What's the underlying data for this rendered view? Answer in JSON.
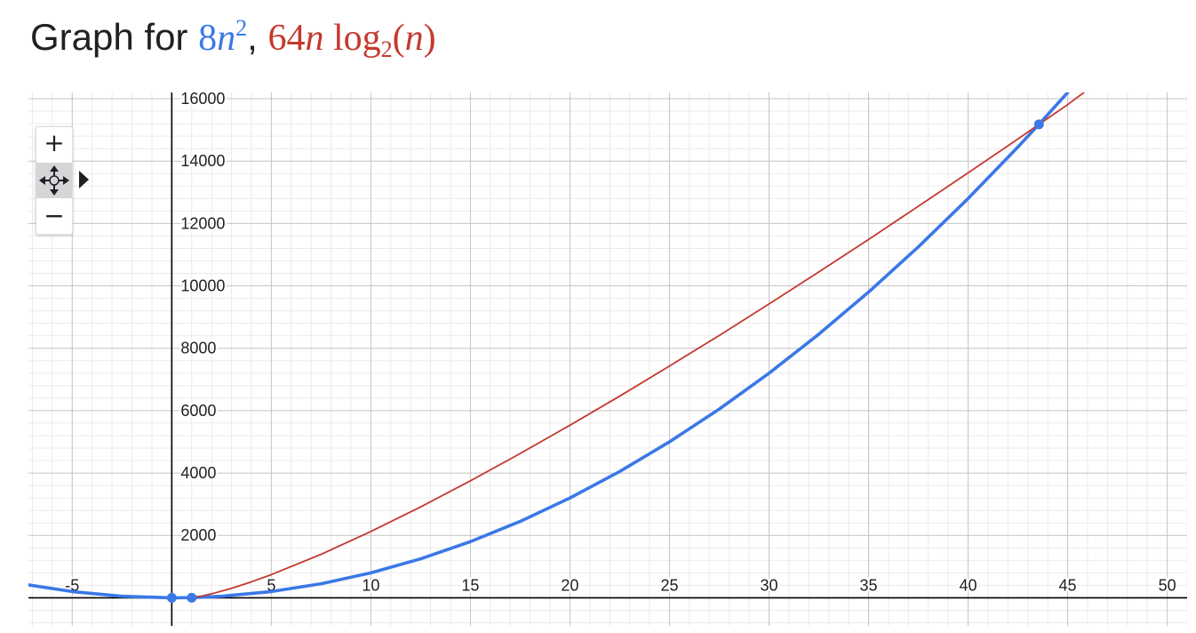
{
  "title": {
    "prefix": "Graph for ",
    "f1_coef": "8",
    "f1_var": "n",
    "f1_exp": "2",
    "separator": ", ",
    "f2_coef": "64",
    "f2_var": "n",
    "f2_log": " log",
    "f2_base": "2",
    "f2_open": "(",
    "f2_arg": "n",
    "f2_close": ")"
  },
  "controls": {
    "zoom_in": "+",
    "pan": "pan-icon",
    "zoom_out": "−",
    "expand": "expand-arrow-icon"
  },
  "chart_data": {
    "type": "line",
    "title": "Graph for 8n², 64n log₂(n)",
    "xlim": [
      -7.2,
      51
    ],
    "ylim": [
      -900,
      16200
    ],
    "x_ticks": [
      -5,
      5,
      10,
      15,
      20,
      25,
      30,
      35,
      40,
      45,
      50
    ],
    "x_tick_labels": [
      "-5",
      "5",
      "10",
      "15",
      "20",
      "25",
      "30",
      "35",
      "40",
      "45",
      "50"
    ],
    "y_ticks": [
      2000,
      4000,
      6000,
      8000,
      10000,
      12000,
      14000,
      16000
    ],
    "y_tick_labels": [
      "2000",
      "4000",
      "6000",
      "8000",
      "10000",
      "12000",
      "14000",
      "16000"
    ],
    "grid": true,
    "series": [
      {
        "name": "8n²",
        "color": "#3b78e7",
        "x": [
          -7.2,
          -5,
          -2.5,
          0,
          1,
          2.5,
          5,
          7.5,
          10,
          12.5,
          15,
          17.5,
          20,
          22.5,
          25,
          27.5,
          30,
          32.5,
          35,
          37.5,
          40,
          42.5,
          43.56,
          45,
          46
        ],
        "y": [
          414.7,
          200,
          50,
          0,
          8,
          50,
          200,
          450,
          800,
          1250,
          1800,
          2450,
          3200,
          4050,
          5000,
          6050,
          7200,
          8450,
          9800,
          11250,
          12800,
          14450,
          15179,
          16200,
          16928
        ]
      },
      {
        "name": "64n log₂(n)",
        "color": "#c5392f",
        "x": [
          1,
          1.5,
          2,
          3,
          4,
          5,
          7.5,
          10,
          12.5,
          15,
          17.5,
          20,
          22.5,
          25,
          27.5,
          30,
          32.5,
          35,
          37.5,
          40,
          42.5,
          43.56,
          45,
          46
        ],
        "y": [
          0,
          56.2,
          128,
          304.3,
          512,
          743,
          1394,
          2126,
          2913,
          3751,
          4626,
          5532,
          6465,
          7430,
          8410,
          9420,
          10445,
          11488,
          12552,
          13626,
          14708,
          15178,
          15810,
          16288
        ]
      }
    ],
    "intersection_points": [
      {
        "x": 0,
        "y": 0
      },
      {
        "x": 1,
        "y": 0
      },
      {
        "x": 43.56,
        "y": 15179
      }
    ]
  }
}
